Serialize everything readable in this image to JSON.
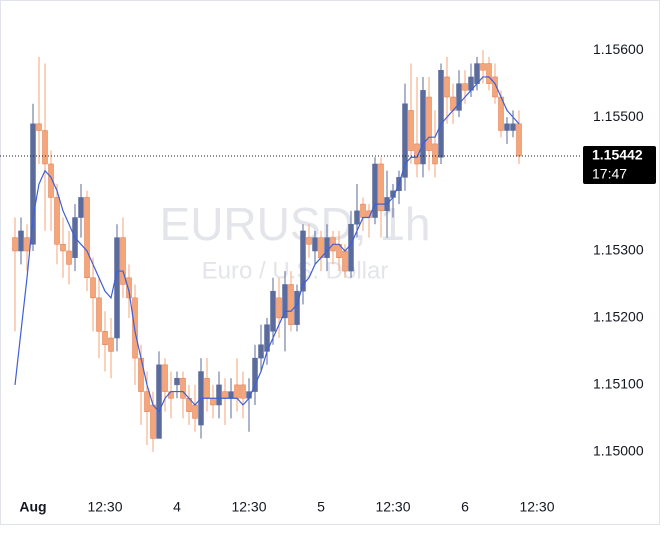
{
  "chart_data": {
    "type": "candlestick",
    "title": "EURUSD, 1h",
    "subtitle": "Euro / U.S. Dollar",
    "categories": [
      null,
      null,
      null,
      "Aug",
      null,
      null,
      null,
      null,
      null,
      null,
      null,
      null,
      null,
      null,
      null,
      "12:30",
      null,
      null,
      null,
      null,
      null,
      null,
      null,
      null,
      null,
      null,
      null,
      "4",
      null,
      null,
      null,
      null,
      null,
      null,
      null,
      null,
      null,
      null,
      null,
      "12:30",
      null,
      null,
      null,
      null,
      null,
      null,
      null,
      null,
      null,
      null,
      null,
      "5",
      null,
      null,
      null,
      null,
      null,
      null,
      null,
      null,
      null,
      null,
      null,
      "12:30",
      null,
      null,
      null,
      null,
      null,
      null,
      null,
      null,
      null,
      null,
      null,
      "6",
      null,
      null,
      null,
      null,
      null,
      null,
      null,
      null,
      null,
      null,
      null,
      "12:30"
    ],
    "open": [
      1.1532,
      1.153,
      1.1532,
      1.1531,
      1.1549,
      1.1548,
      1.1543,
      1.1538,
      1.1531,
      1.153,
      1.1529,
      1.1535,
      1.1538,
      1.1526,
      1.1523,
      1.1518,
      1.1517,
      1.1517,
      1.1532,
      1.1526,
      1.1523,
      1.1514,
      1.1509,
      1.1507,
      1.1502,
      1.1513,
      1.1509,
      1.151,
      1.1511,
      1.1508,
      1.1507,
      1.1504,
      1.1511,
      1.1508,
      1.1507,
      1.1509,
      1.1508,
      1.151,
      1.151,
      1.1508,
      1.1509,
      1.1514,
      1.1515,
      1.1518,
      1.1523,
      1.152,
      1.1525,
      1.1519,
      1.1524,
      1.1532,
      1.153,
      1.1532,
      1.1529,
      1.1532,
      1.1531,
      1.153,
      1.1527,
      1.1534,
      1.1537,
      1.1536,
      1.1535,
      1.1543,
      1.1536,
      1.1538,
      1.1539,
      1.1541,
      1.1551,
      1.1546,
      1.1543,
      1.1553,
      1.1546,
      1.1544,
      1.1556,
      1.1553,
      1.1551,
      1.1555,
      1.1554,
      1.1555,
      1.1558,
      1.1558,
      1.1556,
      1.1553,
      1.1548,
      1.1548,
      1.1549,
      null,
      null,
      null
    ],
    "high": [
      1.1535,
      1.1535,
      1.1534,
      1.1552,
      1.1559,
      1.1558,
      1.1545,
      1.154,
      1.1535,
      1.1533,
      1.1537,
      1.154,
      1.1539,
      1.1529,
      1.1526,
      1.1521,
      1.152,
      1.1534,
      1.1535,
      1.1528,
      1.1525,
      1.1516,
      1.1512,
      1.1509,
      1.1515,
      1.1514,
      1.1512,
      1.1512,
      1.1512,
      1.151,
      1.151,
      1.1514,
      1.1514,
      1.151,
      1.1512,
      1.1511,
      1.1511,
      1.1514,
      1.1512,
      1.1511,
      1.1516,
      1.1519,
      1.152,
      1.1526,
      1.1526,
      1.1527,
      1.1527,
      1.1525,
      1.1534,
      1.1534,
      1.1533,
      1.1533,
      1.1534,
      1.1533,
      1.1533,
      1.1531,
      1.1536,
      1.154,
      1.1538,
      1.1537,
      1.1544,
      1.1544,
      1.1542,
      1.154,
      1.1542,
      1.1555,
      1.1558,
      1.1556,
      1.1556,
      1.1556,
      1.1551,
      1.1558,
      1.1559,
      1.1555,
      1.1557,
      1.1557,
      1.1558,
      1.1559,
      1.156,
      1.1559,
      1.1558,
      1.1554,
      1.155,
      1.1551,
      1.1551,
      null,
      null,
      null
    ],
    "low": [
      1.1518,
      1.1528,
      1.1527,
      1.153,
      1.1543,
      1.1533,
      1.1533,
      1.1528,
      1.1526,
      1.1525,
      1.1527,
      1.1532,
      1.1524,
      1.1518,
      1.1514,
      1.1512,
      1.1511,
      1.1515,
      1.1523,
      1.152,
      1.151,
      1.1504,
      1.1501,
      1.15,
      1.1502,
      1.1506,
      1.1505,
      1.1508,
      1.1505,
      1.1504,
      1.1503,
      1.1502,
      1.1506,
      1.1505,
      1.1505,
      1.1504,
      1.1505,
      1.1506,
      1.1505,
      1.1503,
      1.1507,
      1.1512,
      1.1513,
      1.1516,
      1.1517,
      1.1515,
      1.1518,
      1.1518,
      1.1522,
      1.1529,
      1.1528,
      1.1527,
      1.1527,
      1.1528,
      1.1527,
      1.1526,
      1.1526,
      1.1532,
      1.1533,
      1.1532,
      1.1534,
      1.1532,
      1.1532,
      1.1535,
      1.1537,
      1.1539,
      1.1543,
      1.1541,
      1.1541,
      1.1542,
      1.1541,
      1.1543,
      1.1549,
      1.1549,
      1.155,
      1.1552,
      1.1553,
      1.1554,
      1.1555,
      1.1554,
      1.1552,
      1.1547,
      1.1546,
      1.1547,
      1.1543,
      null,
      null,
      null
    ],
    "close": [
      1.153,
      1.1533,
      1.153,
      1.1549,
      1.1548,
      1.1543,
      1.1538,
      1.1531,
      1.153,
      1.1528,
      1.1535,
      1.1538,
      1.1526,
      1.1523,
      1.1518,
      1.1516,
      1.1515,
      1.1532,
      1.1525,
      1.1523,
      1.1514,
      1.1509,
      1.1506,
      1.1502,
      1.1513,
      1.1509,
      1.1508,
      1.1511,
      1.1508,
      1.1506,
      1.1505,
      1.1512,
      1.1508,
      1.1507,
      1.151,
      1.1508,
      1.1509,
      1.1508,
      1.1508,
      1.1509,
      1.1514,
      1.1516,
      1.1519,
      1.1524,
      1.152,
      1.1525,
      1.1519,
      1.1524,
      1.1533,
      1.1531,
      1.1532,
      1.1529,
      1.1532,
      1.153,
      1.1529,
      1.1527,
      1.1534,
      1.1536,
      1.1535,
      1.1535,
      1.1543,
      1.1536,
      1.1538,
      1.1539,
      1.1541,
      1.1552,
      1.1545,
      1.1543,
      1.1554,
      1.1545,
      1.1543,
      1.1557,
      1.1553,
      1.1551,
      1.1555,
      1.1554,
      1.1556,
      1.1558,
      1.1557,
      1.1555,
      1.1553,
      1.1548,
      1.1549,
      1.1549,
      1.15442,
      null,
      null,
      null
    ],
    "up_color": "#5b6b9b",
    "down_color": "#f4a57a",
    "line": {
      "color": "#3f5fd6",
      "values": [
        1.151,
        1.1518,
        1.1526,
        1.1535,
        1.154,
        1.1542,
        1.1541,
        1.1539,
        1.1536,
        1.1534,
        1.1532,
        1.1531,
        1.153,
        1.1528,
        1.1526,
        1.1524,
        1.1523,
        1.1527,
        1.1527,
        1.1524,
        1.1518,
        1.1514,
        1.151,
        1.1507,
        1.1506,
        1.1508,
        1.1509,
        1.1509,
        1.1509,
        1.1508,
        1.1507,
        1.1508,
        1.1508,
        1.1508,
        1.1508,
        1.1508,
        1.1508,
        1.1508,
        1.1507,
        1.1508,
        1.151,
        1.1512,
        1.1515,
        1.1517,
        1.1519,
        1.1521,
        1.1521,
        1.1522,
        1.1525,
        1.1526,
        1.1528,
        1.1529,
        1.153,
        1.1531,
        1.1531,
        1.153,
        1.1531,
        1.1533,
        1.1535,
        1.1535,
        1.1537,
        1.1537,
        1.1537,
        1.1538,
        1.154,
        1.1543,
        1.1544,
        1.1544,
        1.1546,
        1.1547,
        1.1547,
        1.1549,
        1.155,
        1.1551,
        1.1552,
        1.1553,
        1.1554,
        1.1555,
        1.1556,
        1.1556,
        1.1555,
        1.1553,
        1.1551,
        1.155,
        1.1549,
        null,
        null,
        null
      ]
    },
    "ylim": [
      1.1494,
      1.1566
    ],
    "yticks": [
      {
        "value": 1.15,
        "label": "1.15000"
      },
      {
        "value": 1.151,
        "label": "1.15100"
      },
      {
        "value": 1.152,
        "label": "1.15200"
      },
      {
        "value": 1.153,
        "label": "1.15300"
      },
      {
        "value": 1.155,
        "label": "1.15500"
      },
      {
        "value": 1.156,
        "label": "1.15600"
      }
    ],
    "last_price": {
      "value": 1.15442,
      "label": "1.15442"
    },
    "countdown": "17:47"
  }
}
